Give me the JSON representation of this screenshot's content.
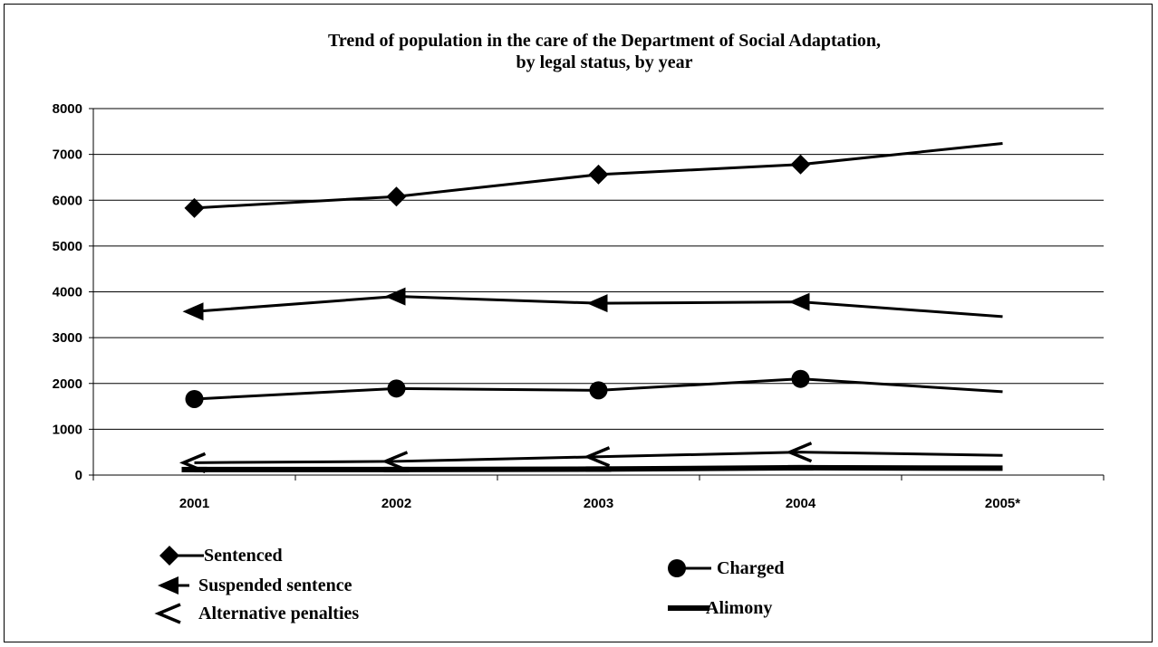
{
  "chart_data": {
    "type": "line",
    "title_lines": [
      "Trend of population in the care of the Department of Social Adaptation,",
      "by legal status, by year"
    ],
    "categories": [
      "2001",
      "2002",
      "2003",
      "2004",
      "2005*"
    ],
    "ylim": [
      0,
      8000
    ],
    "yticks": [
      0,
      1000,
      2000,
      3000,
      4000,
      5000,
      6000,
      7000,
      8000
    ],
    "grid": "horizontal",
    "legend_position": "bottom",
    "series": [
      {
        "name": "Sentenced",
        "marker": "diamond",
        "values": [
          5830,
          6080,
          6560,
          6780,
          7240
        ]
      },
      {
        "name": "Suspended sentence",
        "marker": "filled-arrow-left",
        "values": [
          3570,
          3900,
          3750,
          3780,
          3460
        ]
      },
      {
        "name": "Charged",
        "marker": "circle",
        "values": [
          1660,
          1890,
          1850,
          2100,
          1820
        ]
      },
      {
        "name": "Alternative penalties",
        "marker": "open-arrow-left",
        "values": [
          270,
          300,
          400,
          500,
          430
        ]
      },
      {
        "name": "Alimony",
        "marker": "dash",
        "values": [
          120,
          120,
          130,
          160,
          150
        ]
      }
    ],
    "color": "#000000"
  }
}
